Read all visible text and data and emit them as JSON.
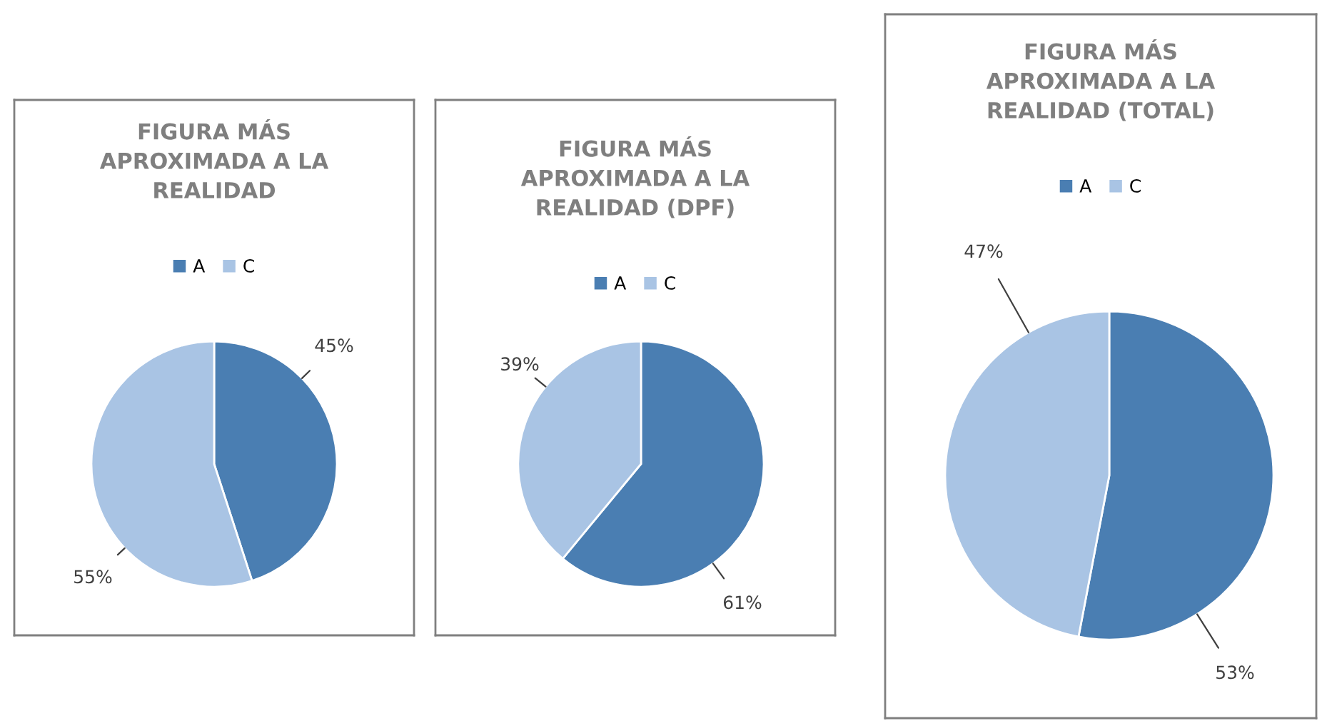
{
  "chart_data": [
    {
      "type": "pie",
      "title": "FIGURA MÁS\nAPROXIMADA A LA\nREALIDAD",
      "categories": [
        "A",
        "C"
      ],
      "values": [
        45,
        55
      ],
      "value_labels": [
        "45%",
        "55%"
      ],
      "colors": [
        "#4a7eb2",
        "#a9c4e4"
      ],
      "legend": "top"
    },
    {
      "type": "pie",
      "title": "FIGURA MÁS\nAPROXIMADA A LA\nREALIDAD (DPF)",
      "categories": [
        "A",
        "C"
      ],
      "values": [
        61,
        39
      ],
      "value_labels": [
        "61%",
        "39%"
      ],
      "colors": [
        "#4a7eb2",
        "#a9c4e4"
      ],
      "legend": "top"
    },
    {
      "type": "pie",
      "title": "FIGURA MÁS\nAPROXIMADA A LA\nREALIDAD (TOTAL)",
      "categories": [
        "A",
        "C"
      ],
      "values": [
        53,
        47
      ],
      "value_labels": [
        "53%",
        "47%"
      ],
      "colors": [
        "#4a7eb2",
        "#a9c4e4"
      ],
      "legend": "top"
    }
  ]
}
